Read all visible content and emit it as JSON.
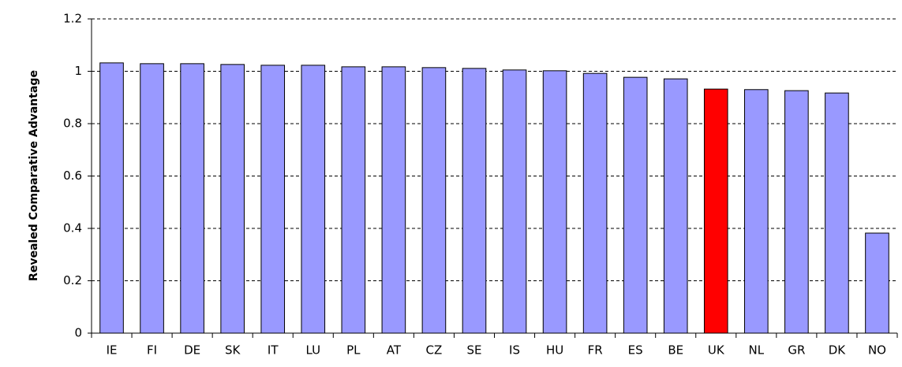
{
  "chart_data": {
    "type": "bar",
    "y_label": "Revealed Comparative Advantage",
    "categories": [
      "IE",
      "FI",
      "DE",
      "SK",
      "IT",
      "LU",
      "PL",
      "AT",
      "CZ",
      "SE",
      "IS",
      "HU",
      "FR",
      "ES",
      "BE",
      "UK",
      "NL",
      "GR",
      "DK",
      "NO"
    ],
    "values": [
      1.032,
      1.029,
      1.029,
      1.026,
      1.023,
      1.023,
      1.017,
      1.017,
      1.014,
      1.011,
      1.005,
      1.002,
      0.992,
      0.977,
      0.971,
      0.932,
      0.93,
      0.926,
      0.917,
      0.382
    ],
    "colors": [
      "#9999ff",
      "#9999ff",
      "#9999ff",
      "#9999ff",
      "#9999ff",
      "#9999ff",
      "#9999ff",
      "#9999ff",
      "#9999ff",
      "#9999ff",
      "#9999ff",
      "#9999ff",
      "#9999ff",
      "#9999ff",
      "#9999ff",
      "#ff0000",
      "#9999ff",
      "#9999ff",
      "#9999ff",
      "#9999ff"
    ],
    "ylim": [
      0,
      1.2
    ],
    "yticks": [
      0,
      0.2,
      0.4,
      0.6,
      0.8,
      1,
      1.2
    ],
    "grid": true
  }
}
